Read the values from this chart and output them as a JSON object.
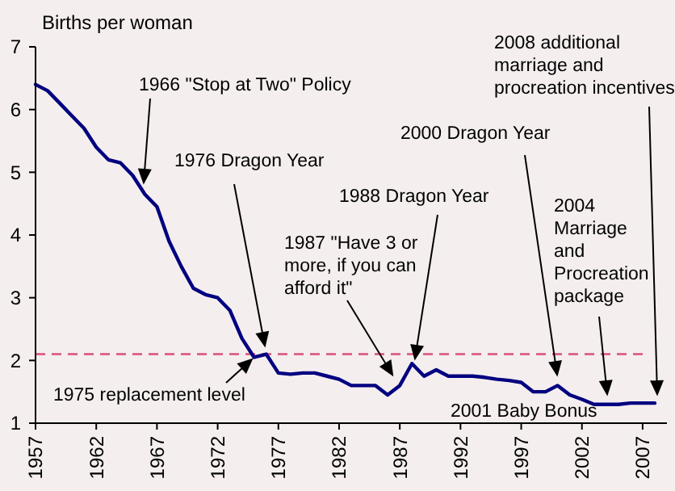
{
  "chart_data": {
    "type": "line",
    "ylabel": "Births per woman",
    "x": [
      1957,
      1958,
      1959,
      1960,
      1961,
      1962,
      1963,
      1964,
      1965,
      1966,
      1967,
      1968,
      1969,
      1970,
      1971,
      1972,
      1973,
      1974,
      1975,
      1976,
      1977,
      1978,
      1979,
      1980,
      1981,
      1982,
      1983,
      1984,
      1985,
      1986,
      1987,
      1988,
      1989,
      1990,
      1991,
      1992,
      1993,
      1994,
      1995,
      1996,
      1997,
      1998,
      1999,
      2000,
      2001,
      2002,
      2003,
      2004,
      2005,
      2006,
      2007,
      2008
    ],
    "series": [
      {
        "color": "#000080",
        "values": [
          6.4,
          6.3,
          6.1,
          5.9,
          5.7,
          5.4,
          5.2,
          5.15,
          4.95,
          4.65,
          4.45,
          3.9,
          3.5,
          3.15,
          3.05,
          3.0,
          2.8,
          2.35,
          2.05,
          2.1,
          1.8,
          1.78,
          1.8,
          1.8,
          1.75,
          1.7,
          1.6,
          1.6,
          1.6,
          1.45,
          1.6,
          1.95,
          1.75,
          1.85,
          1.75,
          1.75,
          1.75,
          1.73,
          1.7,
          1.68,
          1.65,
          1.5,
          1.5,
          1.6,
          1.45,
          1.38,
          1.3,
          1.3,
          1.3,
          1.32,
          1.32,
          1.32
        ]
      }
    ],
    "xlim": [
      1957,
      2009
    ],
    "xticks": [
      1957,
      1962,
      1967,
      1972,
      1977,
      1982,
      1987,
      1992,
      1997,
      2002,
      2007
    ],
    "ylim": [
      1,
      7
    ],
    "yticks": [
      1,
      2,
      3,
      4,
      5,
      6,
      7
    ],
    "ref_lines": [
      {
        "axis": "y",
        "value": 2.1,
        "color": "#d9507a",
        "line_style": "dashed"
      }
    ],
    "annotations": [
      "1966 \"Stop at Two\" Policy",
      "1976 Dragon Year",
      {
        "text": "1975 replacement level",
        "x": 1975,
        "y": 2.05
      },
      "1987 \"Have 3 or more, if you can afford it\"",
      "1988 Dragon Year",
      "2000 Dragon Year",
      "2004 Marriage and Procreation package",
      "2008 additional marriage and procreation incentives",
      "2001 Baby Bonus"
    ],
    "marker": "none",
    "line_style": "solid"
  }
}
